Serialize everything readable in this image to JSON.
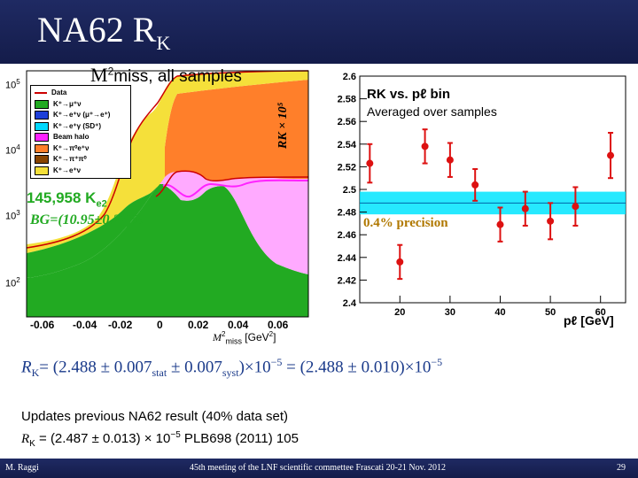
{
  "slide": {
    "title_main": "NA62 R",
    "title_sub": "K"
  },
  "left_plot": {
    "title_m": "M",
    "title_sup": "2",
    "title_rest": "miss, all samples",
    "yticks": [
      {
        "base": "10",
        "exp": "5"
      },
      {
        "base": "10",
        "exp": "4"
      },
      {
        "base": "10",
        "exp": "3"
      },
      {
        "base": "10",
        "exp": "2"
      }
    ],
    "xticks": [
      "-0.06",
      "-0.04",
      "-0.02",
      "0",
      "0.02",
      "0.04",
      "0.06"
    ],
    "xlabel_m": "M",
    "xlabel_sup": "2",
    "xlabel_sub": "miss",
    "xlabel_unit": "[GeV",
    "xlabel_unit_sup": "2",
    "xlabel_unit_end": "]",
    "legend": [
      {
        "label": "Data",
        "color": "#cc0000",
        "kind": "marker"
      },
      {
        "label": "K⁺→μ⁺ν",
        "color": "#22aa22",
        "kind": "box"
      },
      {
        "label": "K⁺→e⁺ν (μ⁺→e⁺)",
        "color": "#1e3fd8",
        "kind": "box"
      },
      {
        "label": "K⁺→e⁺γ (SD⁺)",
        "color": "#00d8ff",
        "kind": "box"
      },
      {
        "label": "Beam halo",
        "color": "#ff22ff",
        "kind": "box"
      },
      {
        "label": "K⁺→π⁰e⁺ν",
        "color": "#ff7f2a",
        "kind": "box"
      },
      {
        "label": "K⁺→π⁺π⁰",
        "color": "#884400",
        "kind": "box"
      },
      {
        "label": "K⁺→e⁺ν",
        "color": "#f5e03a",
        "kind": "box"
      }
    ],
    "events_count": "145,958 K",
    "events_sub": "e2",
    "bg_text": "BG=(10.95±0.27)%",
    "colors": {
      "yellow": "#f5e03a",
      "orange": "#ff7f2a",
      "green": "#22aa22",
      "magenta": "#ff22ff",
      "pink": "#ffaaff",
      "red": "#cc0000"
    }
  },
  "chart_data": {
    "type": "scatter",
    "title": "RK vs. pℓ bin",
    "subtitle": "Averaged over samples",
    "xlabel": "pℓ [GeV]",
    "ylabel": "RK × 10⁵",
    "xlim": [
      12,
      65
    ],
    "ylim": [
      2.4,
      2.6
    ],
    "xticks": [
      20,
      30,
      40,
      50,
      60
    ],
    "yticks": [
      2.4,
      2.42,
      2.44,
      2.46,
      2.48,
      2.5,
      2.52,
      2.54,
      2.56,
      2.58,
      2.6
    ],
    "band": {
      "center": 2.488,
      "low": 2.478,
      "high": 2.498,
      "label": "0.4% precision",
      "color": "#00e5ff"
    },
    "points": [
      {
        "x": 14,
        "y": 2.523,
        "err": 0.017
      },
      {
        "x": 20,
        "y": 2.436,
        "err": 0.015
      },
      {
        "x": 25,
        "y": 2.538,
        "err": 0.015
      },
      {
        "x": 30,
        "y": 2.526,
        "err": 0.015
      },
      {
        "x": 35,
        "y": 2.504,
        "err": 0.014
      },
      {
        "x": 40,
        "y": 2.469,
        "err": 0.015
      },
      {
        "x": 45,
        "y": 2.483,
        "err": 0.015
      },
      {
        "x": 50,
        "y": 2.472,
        "err": 0.016
      },
      {
        "x": 55,
        "y": 2.485,
        "err": 0.017
      },
      {
        "x": 62,
        "y": 2.53,
        "err": 0.02
      }
    ],
    "grid": false,
    "marker_color": "#dd1111"
  },
  "result": {
    "rk": "R",
    "rk_sub": "K",
    "eq1": "= (2.488 ± 0.007",
    "stat": "stat",
    "eq2": " ± 0.007",
    "syst": "syst",
    "eq3": ")×10",
    "exp": "−5",
    "eq4": " = (2.488 ± 0.010)×10",
    "exp2": "−5"
  },
  "update": {
    "line1": "Updates previous NA62 result (40% data set)",
    "r": "R",
    "rsub": "K",
    "line2a": " = (2.487 ± 0.013) × 10",
    "line2exp": "−5",
    "line2b": " PLB698 (2011) 105"
  },
  "footer": {
    "author": "M. Raggi",
    "meeting": "45th meeting of the LNF scientific commettee Frascati 20-21 Nov. 2012",
    "page": "29"
  }
}
